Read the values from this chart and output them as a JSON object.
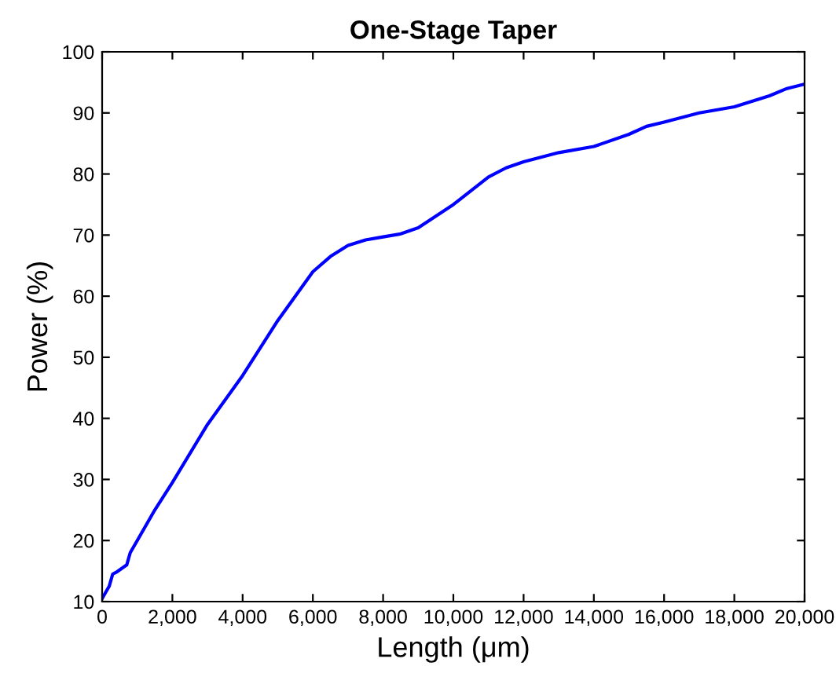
{
  "chart_data": {
    "type": "line",
    "title": "One-Stage Taper",
    "xlabel": "Length (μm)",
    "ylabel": "Power (%)",
    "series": [
      {
        "color": "#0000ff",
        "x": [
          0,
          100,
          200,
          300,
          400,
          700,
          800,
          1000,
          1500,
          2000,
          3000,
          4000,
          5000,
          6000,
          6500,
          7000,
          7500,
          8000,
          8500,
          9000,
          10000,
          11000,
          11500,
          12000,
          13000,
          14000,
          15000,
          15500,
          16000,
          17000,
          18000,
          19000,
          19500,
          20000
        ],
        "values": [
          10.5,
          11.5,
          12.5,
          14.5,
          14.8,
          16,
          18,
          20,
          25,
          29.5,
          39,
          47,
          56,
          64,
          66.5,
          68.3,
          69.2,
          69.7,
          70.2,
          71.2,
          75,
          79.5,
          81,
          82,
          83.5,
          84.5,
          86.5,
          87.8,
          88.5,
          90,
          91,
          92.8,
          94,
          94.7
        ]
      }
    ],
    "xlim": [
      0,
      20000
    ],
    "ylim": [
      10,
      100
    ],
    "xticks": [
      {
        "value": 0,
        "label": "0"
      },
      {
        "value": 2000,
        "label": "2,000"
      },
      {
        "value": 4000,
        "label": "4,000"
      },
      {
        "value": 6000,
        "label": "6,000"
      },
      {
        "value": 8000,
        "label": "8,000"
      },
      {
        "value": 10000,
        "label": "10,000"
      },
      {
        "value": 12000,
        "label": "12,000"
      },
      {
        "value": 14000,
        "label": "14,000"
      },
      {
        "value": 16000,
        "label": "16,000"
      },
      {
        "value": 18000,
        "label": "18,000"
      },
      {
        "value": 20000,
        "label": "20,000"
      }
    ],
    "yticks": [
      10,
      20,
      30,
      40,
      50,
      60,
      70,
      80,
      90,
      100
    ],
    "grid": false,
    "legend": false,
    "marker": "none",
    "line_style": "solid"
  }
}
